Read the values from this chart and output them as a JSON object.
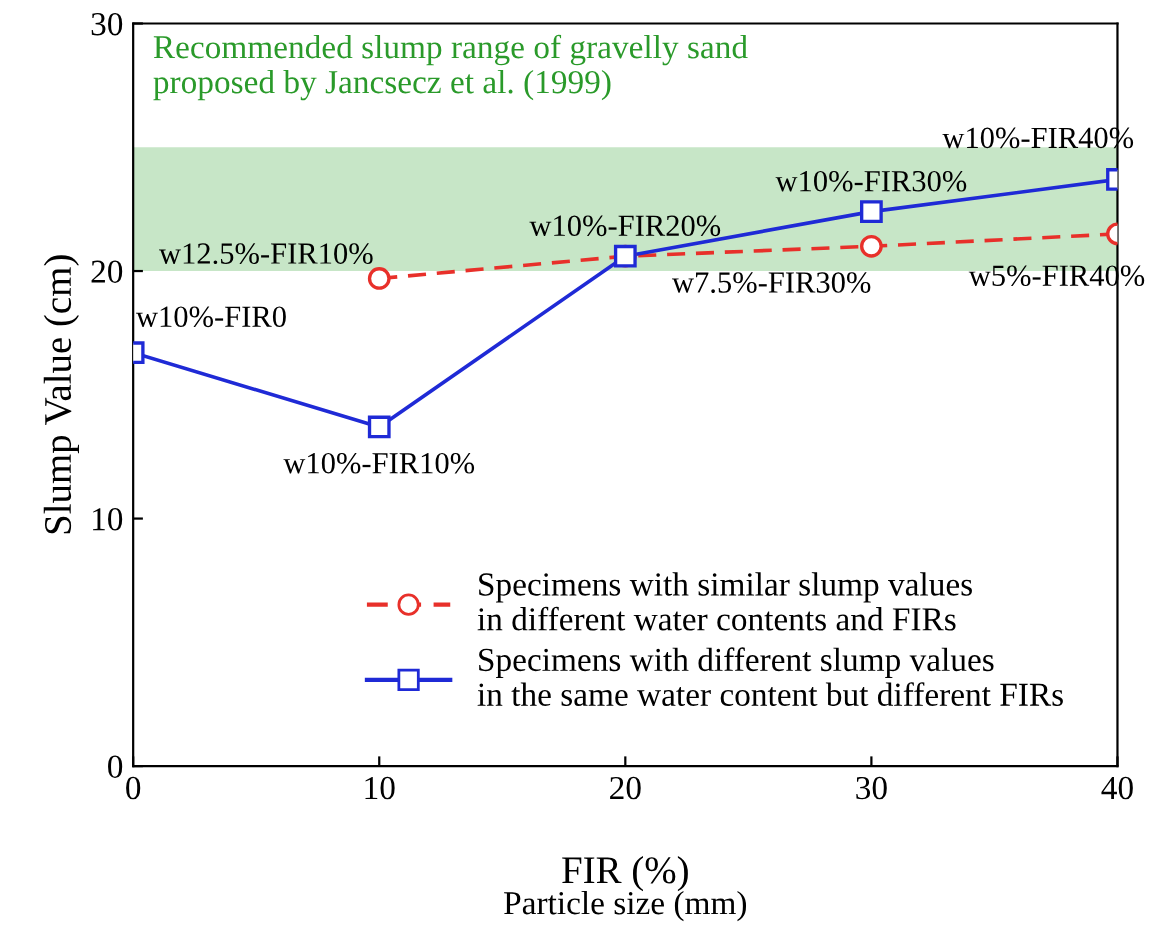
{
  "chart_data": {
    "type": "line",
    "xlabel": "FIR (%)",
    "ylabel": "Slump Value (cm)",
    "xlim": [
      0,
      40
    ],
    "xticks": [
      0,
      10,
      20,
      30,
      40
    ],
    "ylim": [
      0,
      30
    ],
    "yticks": [
      0,
      10,
      20,
      30
    ],
    "grid": false,
    "legend": "bottom right",
    "series": [
      {
        "name": "Specimens with similar slump values\nin different water contents and FIRs",
        "color": "#e8302a",
        "x": [
          10,
          20,
          30,
          40
        ],
        "values": [
          19.7,
          20.6,
          21.0,
          21.5
        ],
        "line_style": "dashed",
        "marker": "circle"
      },
      {
        "name": "Specimens with different slump values\nin the same water content but different FIRs",
        "color": "#1f2ad6",
        "x": [
          0,
          10,
          20,
          30,
          40
        ],
        "values": [
          16.7,
          13.7,
          20.6,
          22.4,
          23.7
        ],
        "line_style": "solid",
        "marker": "square"
      }
    ],
    "bands": [
      {
        "axis": "y",
        "from": 20,
        "to": 25,
        "label": "Recommended slump range of gravelly sand\nproposed by Jancsecz et al. (1999)",
        "color": "#b9e0b9"
      }
    ],
    "annotations": [
      {
        "text": "w10%-FIR0",
        "x": 0,
        "y": 16.7
      },
      {
        "text": "w12.5%-FIR10%",
        "x": 10,
        "y": 19.7
      },
      {
        "text": "w10%-FIR10%",
        "x": 10,
        "y": 13.7
      },
      {
        "text": "w10%-FIR20%",
        "x": 20,
        "y": 20.6
      },
      {
        "text": "w7.5%-FIR30%",
        "x": 30,
        "y": 21.0
      },
      {
        "text": "w10%-FIR30%",
        "x": 30,
        "y": 22.4
      },
      {
        "text": "w10%-FIR40%",
        "x": 40,
        "y": 23.7
      },
      {
        "text": "w5%-FIR40%",
        "x": 40,
        "y": 21.5
      },
      "Particle size (mm)"
    ]
  }
}
